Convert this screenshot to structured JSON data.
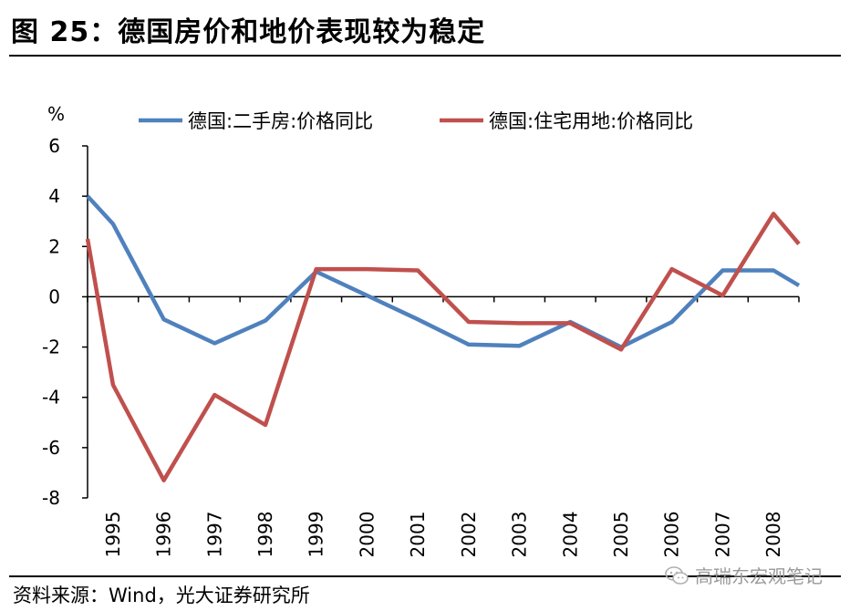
{
  "title": "图 25：德国房价和地价表现较为稳定",
  "source": "资料来源：Wind，光大证券研究所",
  "watermark": "高瑞东宏观笔记",
  "chart_data": {
    "type": "line",
    "ylabel": "%",
    "ylim": [
      -8,
      6
    ],
    "yticks": [
      6,
      4,
      2,
      0,
      -2,
      -4,
      -6,
      -8
    ],
    "categories": [
      "1995",
      "1996",
      "1997",
      "1998",
      "1999",
      "2000",
      "2001",
      "2002",
      "2003",
      "2004",
      "2005",
      "2006",
      "2007",
      "2008"
    ],
    "legend_position": "top",
    "series": [
      {
        "name": "德国:二手房:价格同比",
        "color": "#4f81bd",
        "x": [
          1994.5,
          1995,
          1996,
          1997,
          1998,
          1999,
          2000,
          2001,
          2002,
          2003,
          2004,
          2005,
          2006,
          2007,
          2008,
          2008.5
        ],
        "values": [
          4.0,
          2.9,
          -0.9,
          -1.85,
          -0.95,
          1.0,
          0.05,
          -0.9,
          -1.9,
          -1.95,
          -1.0,
          -2.0,
          -1.0,
          1.05,
          1.05,
          0.45
        ]
      },
      {
        "name": "德国:住宅用地:价格同比",
        "color": "#c0504d",
        "x": [
          1994.5,
          1995,
          1996,
          1997,
          1998,
          1999,
          2000,
          2001,
          2002,
          2003,
          2004,
          2005,
          2006,
          2007,
          2008,
          2008.5
        ],
        "values": [
          2.3,
          -3.5,
          -7.3,
          -3.9,
          -5.1,
          1.1,
          1.1,
          1.05,
          -1.0,
          -1.05,
          -1.05,
          -2.1,
          1.1,
          0.05,
          3.3,
          2.1
        ]
      }
    ]
  }
}
